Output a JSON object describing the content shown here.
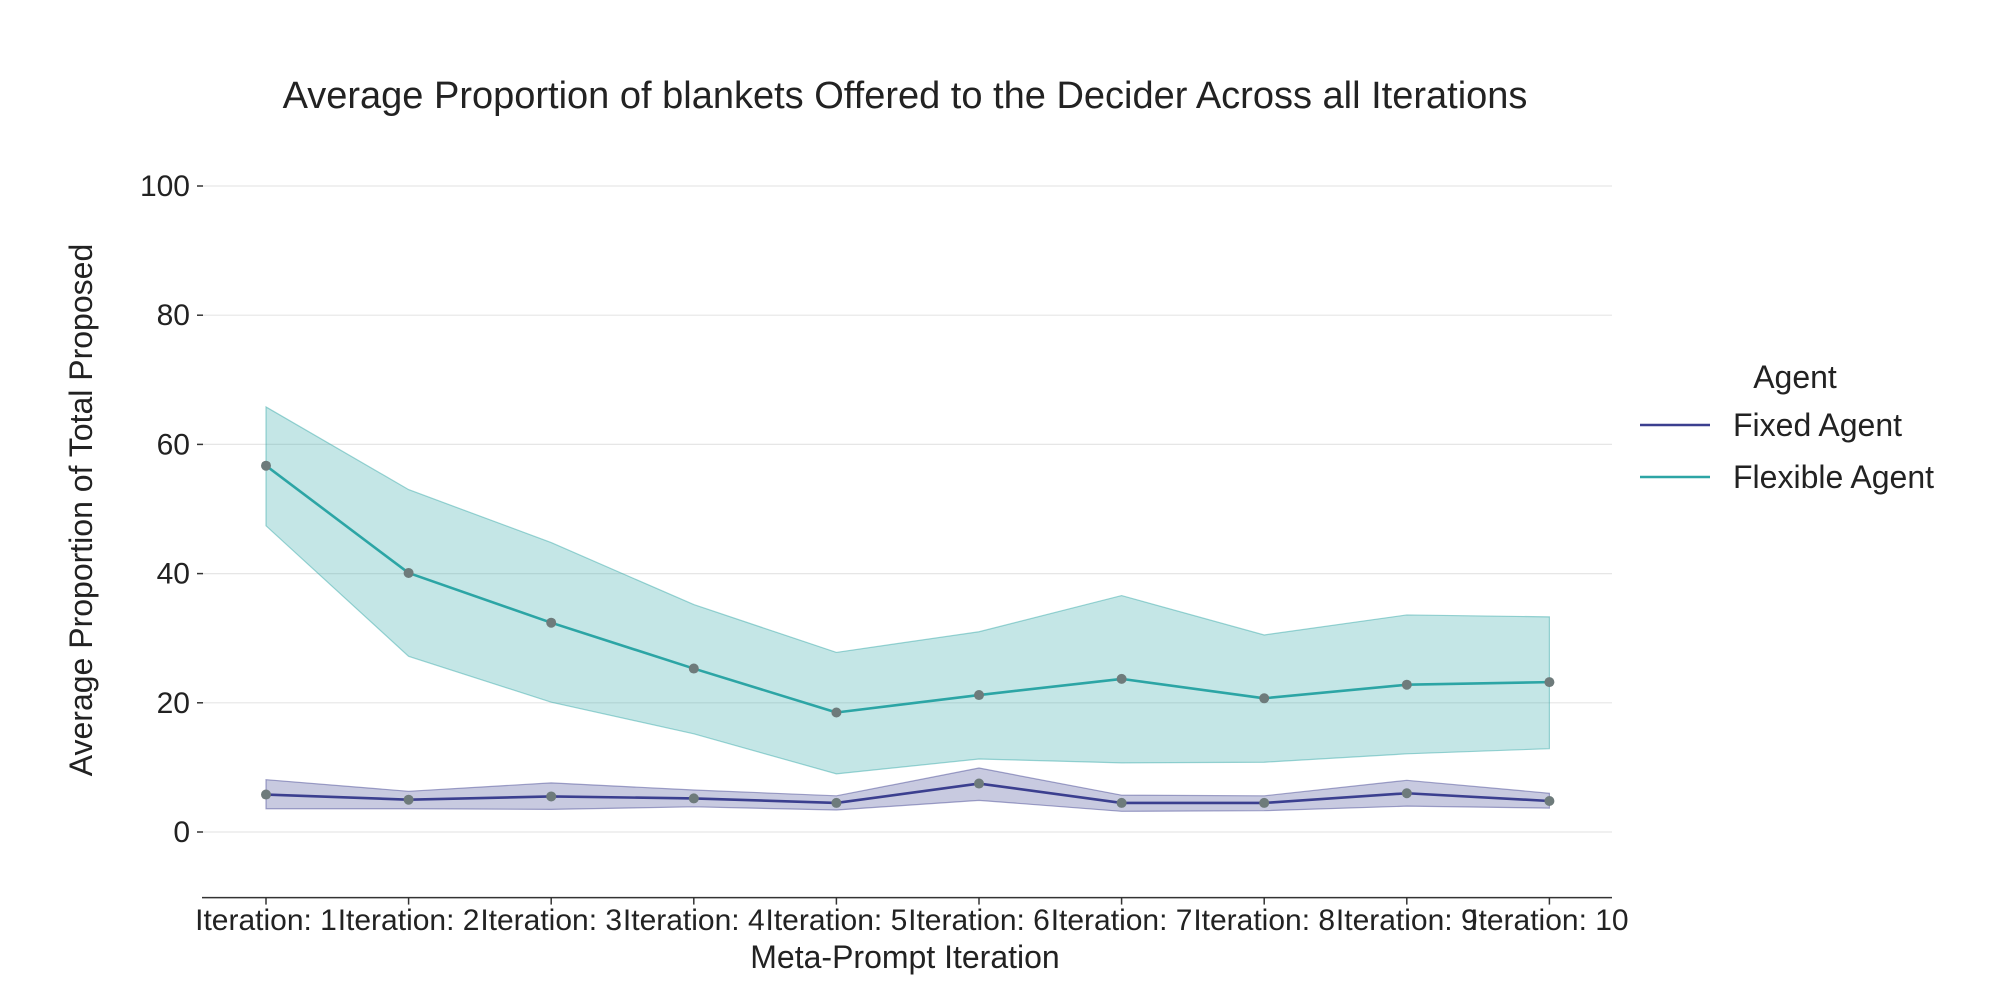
{
  "chart_data": {
    "type": "line",
    "title": "Average Proportion of blankets Offered to the Decider Across all Iterations",
    "xlabel": "Meta-Prompt Iteration",
    "ylabel": "Average Proportion of Total Proposed",
    "categories": [
      "Iteration: 1",
      "Iteration: 2",
      "Iteration: 3",
      "Iteration: 4",
      "Iteration: 5",
      "Iteration: 6",
      "Iteration: 7",
      "Iteration: 8",
      "Iteration: 9",
      "Iteration: 10"
    ],
    "ylim": [
      -10,
      110
    ],
    "yticks": [
      0,
      20,
      40,
      60,
      80,
      100
    ],
    "grid": true,
    "legend_title": "Agent",
    "legend_position": "right",
    "marker_color": "#6e7b7b",
    "series": [
      {
        "name": "Fixed Agent",
        "color": "#3b3f8f",
        "values": [
          5.8,
          5.0,
          5.5,
          5.2,
          4.5,
          7.5,
          4.5,
          4.5,
          6.0,
          4.8
        ],
        "ci_lower": [
          3.6,
          3.6,
          3.5,
          3.9,
          3.4,
          4.9,
          3.2,
          3.3,
          4.0,
          3.7
        ],
        "ci_upper": [
          8.1,
          6.3,
          7.6,
          6.5,
          5.6,
          9.9,
          5.7,
          5.6,
          8.0,
          6.0
        ]
      },
      {
        "name": "Flexible Agent",
        "color": "#2ca5a5",
        "values": [
          56.7,
          40.1,
          32.4,
          25.3,
          18.5,
          21.2,
          23.7,
          20.7,
          22.8,
          23.2
        ],
        "ci_lower": [
          47.4,
          27.2,
          20.1,
          15.2,
          9.0,
          11.3,
          10.7,
          10.8,
          12.1,
          12.9
        ],
        "ci_upper": [
          65.8,
          53.0,
          44.8,
          35.2,
          27.8,
          31.0,
          36.6,
          30.5,
          33.6,
          33.3
        ]
      }
    ]
  }
}
